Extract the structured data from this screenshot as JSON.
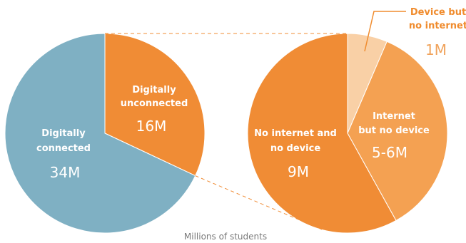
{
  "chart_data": [
    {
      "type": "pie",
      "title": "",
      "slices": [
        {
          "label_line1": "Digitally",
          "label_line2": "connected",
          "value_label": "34M",
          "value": 34,
          "color": "#7fb0c3"
        },
        {
          "label_line1": "Digitally",
          "label_line2": "unconnected",
          "value_label": "16M",
          "value": 16,
          "color": "#f08c35"
        }
      ]
    },
    {
      "type": "pie",
      "title": "",
      "slices": [
        {
          "label_line1": "Device but",
          "label_line2": "no internet",
          "value_label": "1M",
          "value": 1,
          "color": "#f9d0a6"
        },
        {
          "label_line1": "Internet",
          "label_line2": "but no device",
          "value_label": "5-6M",
          "value": 5.5,
          "color": "#f4a152"
        },
        {
          "label_line1": "No internet and",
          "label_line2": "no device",
          "value_label": "9M",
          "value": 9,
          "color": "#f08c35"
        }
      ]
    }
  ],
  "caption": "Millions of students",
  "colors": {
    "callout_text": "#f08c2e",
    "callout_line": "#f08c2e",
    "connector": "#f08c35"
  }
}
